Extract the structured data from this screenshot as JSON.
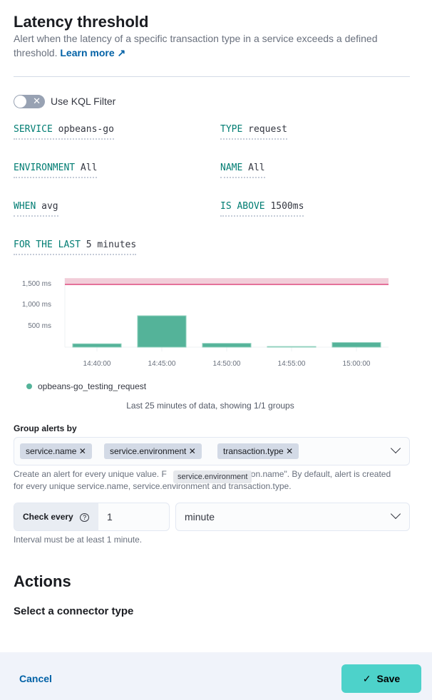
{
  "header": {
    "title": "Latency threshold",
    "description": "Alert when the latency of a specific transaction type in a service exceeds a defined threshold.",
    "learn_more": "Learn more"
  },
  "kql_toggle": {
    "label": "Use KQL Filter",
    "enabled": false
  },
  "expressions": {
    "service": {
      "key": "SERVICE",
      "value": "opbeans-go"
    },
    "type": {
      "key": "TYPE",
      "value": "request"
    },
    "environment": {
      "key": "ENVIRONMENT",
      "value": "All"
    },
    "name": {
      "key": "NAME",
      "value": "All"
    },
    "when": {
      "key": "WHEN",
      "value": "avg"
    },
    "is_above": {
      "key": "IS ABOVE",
      "value": "1500ms"
    },
    "for_the_last": {
      "key": "FOR THE LAST",
      "value": "5 minutes"
    }
  },
  "chart_data": {
    "type": "bar",
    "categories": [
      "14:40:00",
      "14:45:00",
      "14:50:00",
      "14:55:00",
      "15:00:00"
    ],
    "series": [
      {
        "name": "opbeans-go_testing_request",
        "values": [
          80,
          750,
          90,
          15,
          110
        ],
        "color": "#54b399"
      }
    ],
    "y_ticks": [
      "500 ms",
      "1,000 ms",
      "1,500 ms"
    ],
    "ylim": [
      0,
      1650
    ],
    "threshold": 1500,
    "threshold_color": "#e4719a",
    "legend": "bottom-left"
  },
  "chart_note": "Last 25 minutes of data, showing 1/1 groups",
  "group_by": {
    "label": "Group alerts by",
    "pills": [
      "service.name",
      "service.environment",
      "transaction.type"
    ],
    "help_a": "Create an alert for every unique value. F",
    "help_b": "tion.name\". By default, alert is created for every unique service.name, service.environment and transaction.type.",
    "tooltip": "service.environment"
  },
  "check_every": {
    "label": "Check every",
    "value": "1",
    "unit": "minute",
    "help": "Interval must be at least 1 minute."
  },
  "actions": {
    "title": "Actions",
    "subtitle": "Select a connector type"
  },
  "footer": {
    "cancel": "Cancel",
    "save": "Save"
  }
}
